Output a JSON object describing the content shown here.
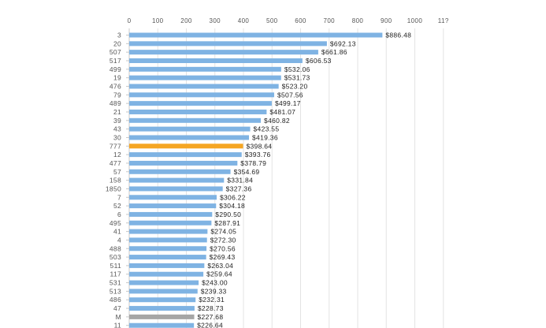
{
  "chart_data": {
    "type": "bar",
    "orientation": "horizontal",
    "x_ticks": [
      "0",
      "100",
      "200",
      "300",
      "400",
      "500",
      "600",
      "700",
      "800",
      "900",
      "1000",
      "11?"
    ],
    "xlim": [
      0,
      1100
    ],
    "grid": true,
    "categories": [
      "3",
      "20",
      "507",
      "517",
      "499",
      "19",
      "476",
      "79",
      "489",
      "21",
      "39",
      "43",
      "30",
      "777",
      "12",
      "477",
      "57",
      "158",
      "1850",
      "7",
      "52",
      "6",
      "495",
      "41",
      "4",
      "488",
      "503",
      "511",
      "117",
      "531",
      "513",
      "486",
      "47",
      "M",
      "11"
    ],
    "values": [
      886.48,
      692.13,
      661.86,
      606.53,
      532.06,
      531.73,
      523.2,
      507.56,
      499.17,
      481.07,
      460.82,
      423.55,
      419.36,
      398.64,
      393.76,
      378.79,
      354.69,
      331.84,
      327.36,
      306.22,
      304.18,
      290.5,
      287.91,
      274.05,
      272.3,
      270.56,
      269.43,
      263.04,
      259.64,
      243.0,
      239.33,
      232.31,
      228.73,
      227.68,
      226.64
    ],
    "value_labels": [
      "$886.48",
      "$692.13",
      "$661.86",
      "$606.53",
      "$532.06",
      "$531.73",
      "$523.20",
      "$507.56",
      "$499.17",
      "$481.07",
      "$460.82",
      "$423.55",
      "$419.36",
      "$398.64",
      "$393.76",
      "$378.79",
      "$354.69",
      "$331.84",
      "$327.36",
      "$306.22",
      "$304.18",
      "$290.50",
      "$287.91",
      "$274.05",
      "$272.30",
      "$270.56",
      "$269.43",
      "$263.04",
      "$259.64",
      "$243.00",
      "$239.33",
      "$232.31",
      "$228.73",
      "$227.68",
      "$226.64"
    ],
    "colors": {
      "default": "#7fb3e3",
      "highlight": "#f5a623",
      "muted": "#a6a6a6",
      "grid": "#e3e3e3",
      "axis": "#c8c8c8",
      "label": "#555555",
      "value_label": "#222222"
    },
    "highlight_category": "777",
    "muted_category": "M"
  }
}
